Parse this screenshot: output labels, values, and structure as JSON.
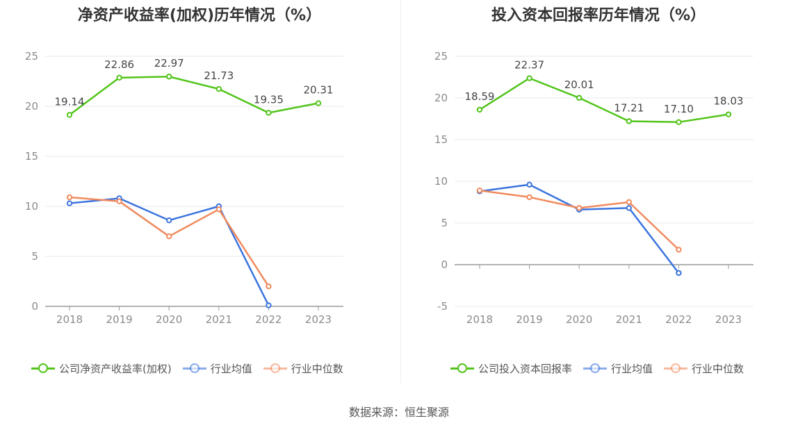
{
  "source": "数据来源：恒生聚源",
  "chart_data": [
    {
      "type": "line",
      "title": "净资产收益率(加权)历年情况（%）",
      "categories": [
        "2018",
        "2019",
        "2020",
        "2021",
        "2022",
        "2023"
      ],
      "ylim": [
        0,
        25
      ],
      "yticks": [
        0,
        5,
        10,
        15,
        20,
        25
      ],
      "grid": true,
      "legend_position": "bottom-left",
      "series": [
        {
          "name": "公司净资产收益率(加权)",
          "color": "#52c41a",
          "labeled": true,
          "values": [
            19.14,
            22.86,
            22.97,
            21.73,
            19.35,
            20.31
          ],
          "labels": [
            "19.14",
            "22.86",
            "22.97",
            "21.73",
            "19.35",
            "20.31"
          ]
        },
        {
          "name": "行业均值",
          "color": "#3b73de",
          "labeled": false,
          "values": [
            10.3,
            10.8,
            8.6,
            10.0,
            0.1,
            null
          ]
        },
        {
          "name": "行业中位数",
          "color": "#f08a5d",
          "labeled": false,
          "values": [
            10.9,
            10.5,
            7.0,
            9.7,
            2.0,
            null
          ]
        }
      ]
    },
    {
      "type": "line",
      "title": "投入资本回报率历年情况（%）",
      "categories": [
        "2018",
        "2019",
        "2020",
        "2021",
        "2022",
        "2023"
      ],
      "ylim": [
        -5,
        25
      ],
      "yticks": [
        -5,
        0,
        5,
        10,
        15,
        20,
        25
      ],
      "grid": true,
      "legend_position": "bottom-left",
      "series": [
        {
          "name": "公司投入资本回报率",
          "color": "#52c41a",
          "labeled": true,
          "values": [
            18.59,
            22.37,
            20.01,
            17.21,
            17.1,
            18.03
          ],
          "labels": [
            "18.59",
            "22.37",
            "20.01",
            "17.21",
            "17.10",
            "18.03"
          ]
        },
        {
          "name": "行业均值",
          "color": "#3b73de",
          "labeled": false,
          "values": [
            8.8,
            9.6,
            6.6,
            6.8,
            -1.0,
            null
          ]
        },
        {
          "name": "行业中位数",
          "color": "#f08a5d",
          "labeled": false,
          "values": [
            8.9,
            8.1,
            6.8,
            7.5,
            1.8,
            null
          ]
        }
      ]
    }
  ]
}
